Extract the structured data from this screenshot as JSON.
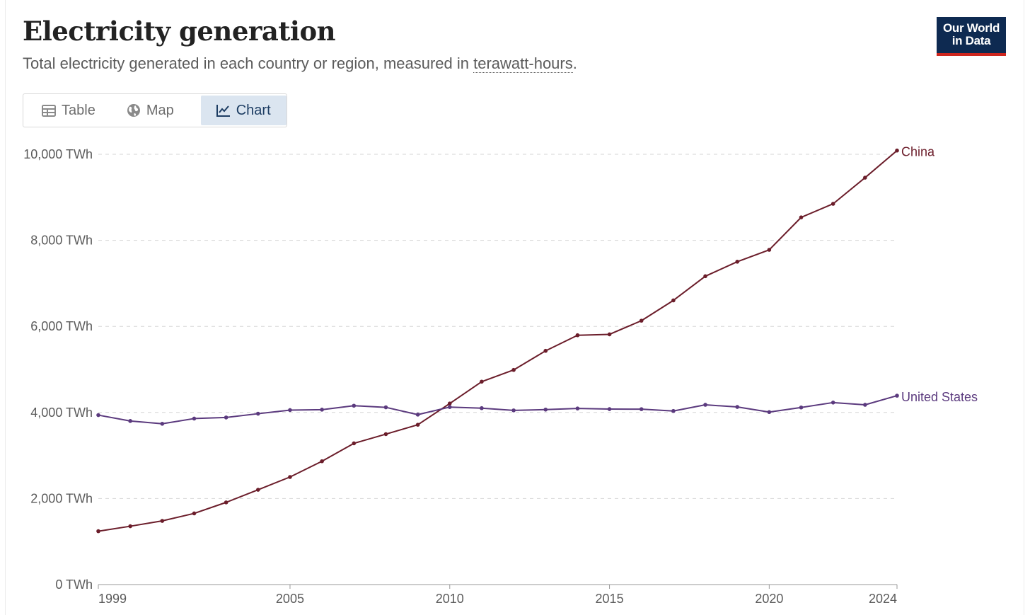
{
  "header": {
    "title": "Electricity generation",
    "subtitle_prefix": "Total electricity generated in each country or region, measured in ",
    "subtitle_link": "terawatt-hours",
    "subtitle_suffix": "."
  },
  "logo": {
    "line1": "Our World",
    "line2": "in Data",
    "bg_color": "#0e2a51",
    "accent_color": "#ce261e"
  },
  "tabs": [
    {
      "label": "Table",
      "icon": "table-icon",
      "active": false
    },
    {
      "label": "Map",
      "icon": "globe-icon",
      "active": false
    },
    {
      "label": "Chart",
      "icon": "line-chart-icon",
      "active": true
    }
  ],
  "chart_data": {
    "type": "line",
    "title": "Electricity generation",
    "xlabel": "",
    "ylabel": "",
    "xlim": [
      1999,
      2024
    ],
    "ylim": [
      0,
      10000
    ],
    "y_ticks": [
      0,
      2000,
      4000,
      6000,
      8000,
      10000
    ],
    "y_tick_labels": [
      "0 TWh",
      "2,000 TWh",
      "4,000 TWh",
      "6,000 TWh",
      "8,000 TWh",
      "10,000 TWh"
    ],
    "x_ticks": [
      1999,
      2005,
      2010,
      2015,
      2020,
      2024
    ],
    "x_tick_labels": [
      "1999",
      "2005",
      "2010",
      "2015",
      "2020",
      "2024"
    ],
    "grid": "horizontal-dashed",
    "legend": "inline-right",
    "x": [
      1999,
      2000,
      2001,
      2002,
      2003,
      2004,
      2005,
      2006,
      2007,
      2008,
      2009,
      2010,
      2011,
      2012,
      2013,
      2014,
      2015,
      2016,
      2017,
      2018,
      2019,
      2020,
      2021,
      2022,
      2023,
      2024
    ],
    "series": [
      {
        "name": "China",
        "color": "#6b1d2a",
        "values": [
          1240,
          1356,
          1480,
          1654,
          1910,
          2203,
          2500,
          2866,
          3282,
          3496,
          3714,
          4208,
          4716,
          4988,
          5432,
          5794,
          5815,
          6133,
          6604,
          7166,
          7503,
          7779,
          8534,
          8849,
          9456,
          10087
        ]
      },
      {
        "name": "United States",
        "color": "#5b3a7e",
        "values": [
          3938,
          3802,
          3737,
          3858,
          3883,
          3971,
          4055,
          4065,
          4157,
          4119,
          3950,
          4125,
          4100,
          4048,
          4066,
          4093,
          4078,
          4077,
          4034,
          4178,
          4128,
          4009,
          4116,
          4230,
          4178,
          4390
        ]
      }
    ]
  }
}
